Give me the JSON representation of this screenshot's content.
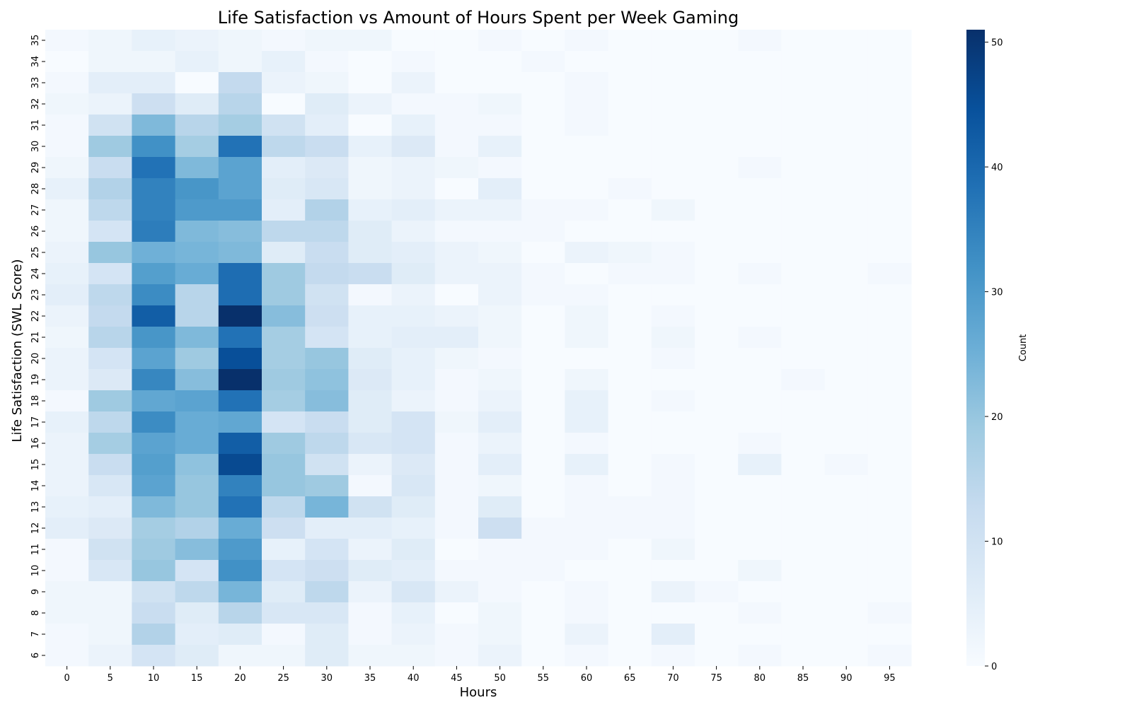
{
  "chart_data": {
    "type": "heatmap",
    "title": "Life Satisfaction vs Amount of Hours Spent per Week Gaming",
    "xlabel": "Hours",
    "ylabel": "Life Satisfaction (SWL Score)",
    "colorbar_label": "Count",
    "colorbar_ticks": [
      0,
      10,
      20,
      30,
      40,
      50
    ],
    "vmin": 0,
    "vmax": 51,
    "colormap": [
      "#f7fbff",
      "#deebf7",
      "#c6dbef",
      "#9ecae1",
      "#6baed6",
      "#4292c6",
      "#2171b5",
      "#08519c",
      "#08306b"
    ],
    "x": [
      0,
      5,
      10,
      15,
      20,
      25,
      30,
      35,
      40,
      45,
      50,
      55,
      60,
      65,
      70,
      75,
      80,
      85,
      90,
      95
    ],
    "y": [
      35,
      34,
      33,
      32,
      31,
      30,
      29,
      28,
      27,
      26,
      25,
      24,
      23,
      22,
      21,
      20,
      19,
      18,
      17,
      16,
      15,
      14,
      13,
      12,
      11,
      10,
      9,
      8,
      7,
      6
    ],
    "values": [
      [
        1,
        2,
        4,
        3,
        2,
        1,
        2,
        2,
        0,
        0,
        1,
        0,
        1,
        0,
        0,
        0,
        1,
        0,
        0,
        0
      ],
      [
        0,
        2,
        2,
        4,
        2,
        4,
        1,
        0,
        1,
        0,
        0,
        1,
        0,
        0,
        0,
        0,
        0,
        0,
        0,
        0
      ],
      [
        1,
        5,
        5,
        0,
        13,
        3,
        2,
        0,
        3,
        0,
        0,
        0,
        1,
        0,
        0,
        0,
        0,
        0,
        0,
        0
      ],
      [
        2,
        3,
        11,
        6,
        15,
        0,
        6,
        3,
        1,
        1,
        2,
        0,
        1,
        0,
        0,
        0,
        0,
        0,
        0,
        0
      ],
      [
        1,
        10,
        23,
        15,
        18,
        10,
        5,
        0,
        4,
        1,
        1,
        0,
        1,
        0,
        0,
        0,
        0,
        0,
        0,
        0
      ],
      [
        1,
        19,
        32,
        18,
        38,
        14,
        12,
        4,
        7,
        1,
        4,
        0,
        0,
        0,
        0,
        0,
        0,
        0,
        0,
        0
      ],
      [
        2,
        12,
        38,
        23,
        28,
        5,
        7,
        2,
        3,
        2,
        1,
        0,
        0,
        0,
        0,
        0,
        1,
        0,
        0,
        0
      ],
      [
        4,
        16,
        35,
        31,
        28,
        6,
        8,
        2,
        3,
        0,
        5,
        0,
        0,
        1,
        0,
        0,
        0,
        0,
        0,
        0
      ],
      [
        2,
        14,
        35,
        30,
        30,
        5,
        16,
        4,
        5,
        3,
        3,
        1,
        1,
        0,
        2,
        0,
        0,
        0,
        0,
        0
      ],
      [
        2,
        9,
        36,
        23,
        22,
        14,
        14,
        6,
        3,
        1,
        1,
        1,
        0,
        0,
        0,
        0,
        0,
        0,
        0,
        0
      ],
      [
        3,
        20,
        25,
        24,
        23,
        6,
        12,
        6,
        5,
        3,
        2,
        0,
        3,
        2,
        1,
        0,
        0,
        0,
        0,
        0
      ],
      [
        4,
        9,
        29,
        26,
        39,
        19,
        13,
        12,
        6,
        3,
        3,
        1,
        0,
        1,
        1,
        0,
        1,
        0,
        0,
        1
      ],
      [
        5,
        14,
        33,
        15,
        39,
        19,
        10,
        1,
        3,
        0,
        3,
        1,
        1,
        0,
        0,
        0,
        0,
        0,
        0,
        0
      ],
      [
        3,
        13,
        42,
        15,
        51,
        22,
        11,
        4,
        4,
        3,
        2,
        0,
        2,
        0,
        1,
        0,
        0,
        0,
        0,
        0
      ],
      [
        2,
        15,
        31,
        23,
        38,
        18,
        9,
        4,
        5,
        5,
        2,
        0,
        2,
        0,
        2,
        0,
        1,
        0,
        0,
        0
      ],
      [
        3,
        9,
        28,
        19,
        45,
        18,
        20,
        6,
        4,
        2,
        1,
        0,
        0,
        0,
        1,
        0,
        0,
        0,
        0,
        0
      ],
      [
        3,
        7,
        34,
        22,
        51,
        19,
        21,
        7,
        4,
        1,
        2,
        0,
        2,
        0,
        0,
        0,
        0,
        1,
        0,
        0
      ],
      [
        1,
        19,
        27,
        28,
        38,
        18,
        22,
        6,
        3,
        1,
        3,
        0,
        4,
        0,
        1,
        0,
        0,
        0,
        0,
        0
      ],
      [
        4,
        14,
        33,
        26,
        27,
        9,
        12,
        6,
        9,
        2,
        5,
        0,
        4,
        0,
        0,
        0,
        0,
        0,
        0,
        0
      ],
      [
        3,
        18,
        28,
        26,
        42,
        19,
        14,
        8,
        9,
        1,
        3,
        0,
        1,
        0,
        0,
        0,
        1,
        0,
        0,
        0
      ],
      [
        3,
        12,
        29,
        21,
        46,
        20,
        10,
        3,
        7,
        1,
        5,
        0,
        4,
        0,
        1,
        0,
        4,
        0,
        1,
        0
      ],
      [
        3,
        8,
        28,
        20,
        35,
        20,
        19,
        1,
        8,
        1,
        2,
        0,
        1,
        0,
        1,
        0,
        0,
        0,
        0,
        0
      ],
      [
        4,
        5,
        23,
        20,
        38,
        14,
        24,
        10,
        6,
        1,
        6,
        0,
        1,
        1,
        1,
        0,
        0,
        0,
        0,
        0
      ],
      [
        5,
        7,
        18,
        16,
        26,
        11,
        5,
        5,
        4,
        1,
        11,
        1,
        1,
        1,
        1,
        0,
        0,
        0,
        0,
        0
      ],
      [
        1,
        10,
        19,
        22,
        30,
        4,
        9,
        3,
        6,
        0,
        1,
        1,
        1,
        0,
        2,
        0,
        0,
        0,
        0,
        0
      ],
      [
        1,
        8,
        20,
        9,
        32,
        9,
        11,
        6,
        5,
        1,
        1,
        1,
        0,
        0,
        0,
        0,
        2,
        0,
        0,
        0
      ],
      [
        2,
        2,
        10,
        14,
        24,
        6,
        14,
        3,
        8,
        3,
        1,
        0,
        1,
        0,
        3,
        1,
        0,
        0,
        0,
        0
      ],
      [
        2,
        2,
        12,
        6,
        15,
        8,
        8,
        1,
        4,
        0,
        2,
        0,
        1,
        0,
        0,
        0,
        1,
        0,
        0,
        1
      ],
      [
        1,
        2,
        16,
        5,
        6,
        1,
        6,
        1,
        3,
        1,
        2,
        0,
        3,
        0,
        5,
        0,
        0,
        0,
        0,
        0
      ],
      [
        1,
        3,
        9,
        6,
        2,
        2,
        6,
        2,
        2,
        1,
        3,
        0,
        1,
        0,
        1,
        0,
        1,
        0,
        0,
        1
      ]
    ]
  }
}
